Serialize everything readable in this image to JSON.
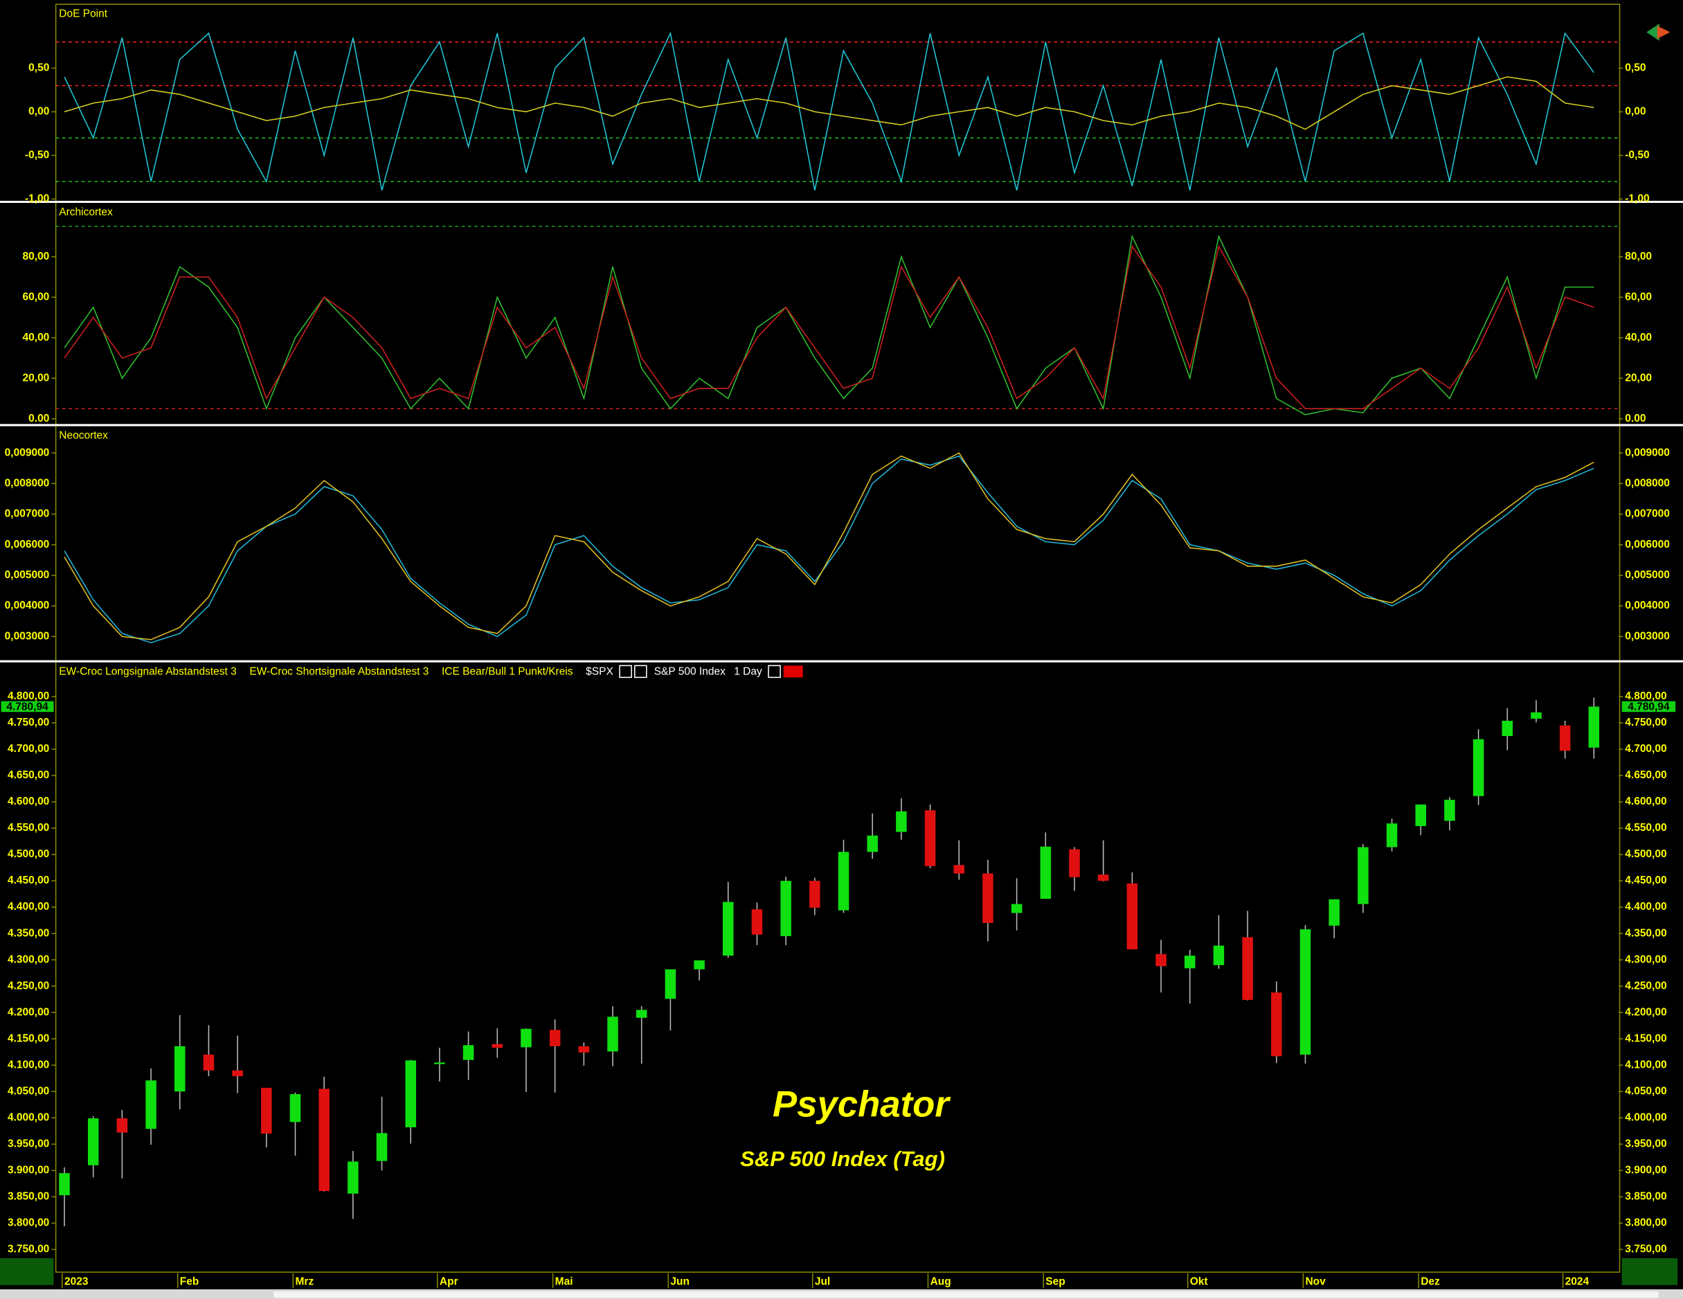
{
  "chart_data": [
    {
      "type": "line",
      "title": "DoE Point",
      "ylim": [
        -1.02,
        1.22
      ],
      "yticks": [
        {
          "value": 0.5,
          "label": "0,50"
        },
        {
          "value": 0,
          "label": "0,00"
        },
        {
          "value": -0.5,
          "label": "-0,50"
        },
        {
          "value": -1,
          "label": "-1,00"
        }
      ],
      "hlines": [
        {
          "value": 0.8,
          "color": "#ff2020"
        },
        {
          "value": 0.3,
          "color": "#ff2020"
        },
        {
          "value": -0.3,
          "color": "#20c020"
        },
        {
          "value": -0.8,
          "color": "#20c020"
        }
      ],
      "series": [
        {
          "color": "#20c8d8",
          "values": [
            0.4,
            -0.3,
            0.85,
            -0.8,
            0.6,
            0.9,
            -0.2,
            -0.8,
            0.7,
            -0.5,
            0.85,
            -0.9,
            0.3,
            0.8,
            -0.4,
            0.9,
            -0.7,
            0.5,
            0.85,
            -0.6,
            0.2,
            0.9,
            -0.8,
            0.6,
            -0.3,
            0.85,
            -0.9,
            0.7,
            0.1,
            -0.8,
            0.9,
            -0.5,
            0.4,
            -0.9,
            0.8,
            -0.7,
            0.3,
            -0.85,
            0.6,
            -0.9,
            0.85,
            -0.4,
            0.5,
            -0.8,
            0.7,
            0.9,
            -0.3,
            0.6,
            -0.8,
            0.85,
            0.2,
            -0.6,
            0.9,
            0.45
          ]
        },
        {
          "color": "#d8d020",
          "values": [
            0.0,
            0.1,
            0.15,
            0.25,
            0.2,
            0.1,
            0.0,
            -0.1,
            -0.05,
            0.05,
            0.1,
            0.15,
            0.25,
            0.2,
            0.15,
            0.05,
            0.0,
            0.1,
            0.05,
            -0.05,
            0.1,
            0.15,
            0.05,
            0.1,
            0.15,
            0.1,
            0.0,
            -0.05,
            -0.1,
            -0.15,
            -0.05,
            0.0,
            0.05,
            -0.05,
            0.05,
            0.0,
            -0.1,
            -0.15,
            -0.05,
            0.0,
            0.1,
            0.05,
            -0.05,
            -0.2,
            0.0,
            0.2,
            0.3,
            0.25,
            0.2,
            0.3,
            0.4,
            0.35,
            0.1,
            0.05
          ]
        }
      ]
    },
    {
      "type": "line",
      "title": "Archicortex",
      "ylim": [
        -2.6,
        106
      ],
      "yticks": [
        {
          "value": 80,
          "label": "80,00"
        },
        {
          "value": 60,
          "label": "60,00"
        },
        {
          "value": 40,
          "label": "40,00"
        },
        {
          "value": 20,
          "label": "20,00"
        },
        {
          "value": 0,
          "label": "0.00"
        }
      ],
      "hlines": [
        {
          "value": 95,
          "color": "#20a020"
        },
        {
          "value": 5,
          "color": "#c02020"
        }
      ],
      "series": [
        {
          "color": "#30c030",
          "values": [
            35,
            55,
            20,
            40,
            75,
            65,
            45,
            5,
            40,
            60,
            45,
            30,
            5,
            20,
            5,
            60,
            30,
            50,
            10,
            75,
            25,
            5,
            20,
            10,
            45,
            55,
            30,
            10,
            25,
            80,
            45,
            70,
            40,
            5,
            25,
            35,
            5,
            90,
            60,
            20,
            90,
            60,
            10,
            2,
            5,
            3,
            20,
            25,
            10,
            40,
            70,
            20,
            65,
            65
          ]
        },
        {
          "color": "#d02020",
          "values": [
            30,
            50,
            30,
            35,
            70,
            70,
            50,
            10,
            35,
            60,
            50,
            35,
            10,
            15,
            10,
            55,
            35,
            45,
            15,
            70,
            30,
            10,
            15,
            15,
            40,
            55,
            35,
            15,
            20,
            75,
            50,
            70,
            45,
            10,
            20,
            35,
            10,
            85,
            65,
            25,
            85,
            60,
            20,
            5,
            5,
            5,
            15,
            25,
            15,
            35,
            65,
            25,
            60,
            55
          ]
        }
      ]
    },
    {
      "type": "line",
      "title": "Neocortex",
      "ylim": [
        0.00226,
        0.00984
      ],
      "yticks": [
        {
          "value": 0.009,
          "label": "0,009000"
        },
        {
          "value": 0.008,
          "label": "0,008000"
        },
        {
          "value": 0.007,
          "label": "0,007000"
        },
        {
          "value": 0.006,
          "label": "0,006000"
        },
        {
          "value": 0.005,
          "label": "0,005000"
        },
        {
          "value": 0.004,
          "label": "0,004000"
        },
        {
          "value": 0.003,
          "label": "0,003000"
        }
      ],
      "hlines": [],
      "series": [
        {
          "color": "#20b8d8",
          "values": [
            0.0058,
            0.0042,
            0.0031,
            0.0028,
            0.0031,
            0.004,
            0.0058,
            0.0066,
            0.007,
            0.0079,
            0.0076,
            0.0065,
            0.0049,
            0.0041,
            0.0034,
            0.003,
            0.0037,
            0.006,
            0.0063,
            0.0053,
            0.0046,
            0.0041,
            0.0042,
            0.0046,
            0.006,
            0.0058,
            0.0048,
            0.0061,
            0.008,
            0.0088,
            0.0086,
            0.0089,
            0.0077,
            0.0066,
            0.0061,
            0.006,
            0.0068,
            0.0081,
            0.0075,
            0.006,
            0.0058,
            0.0054,
            0.0052,
            0.0054,
            0.005,
            0.0044,
            0.004,
            0.0045,
            0.0055,
            0.0063,
            0.007,
            0.0078,
            0.0081,
            0.0085
          ]
        },
        {
          "color": "#e0c020",
          "values": [
            0.0056,
            0.004,
            0.003,
            0.0029,
            0.0033,
            0.0043,
            0.0061,
            0.0066,
            0.0072,
            0.0081,
            0.0074,
            0.0062,
            0.0048,
            0.004,
            0.0033,
            0.0031,
            0.004,
            0.0063,
            0.0061,
            0.0051,
            0.0045,
            0.004,
            0.0043,
            0.0048,
            0.0062,
            0.0057,
            0.0047,
            0.0064,
            0.0083,
            0.0089,
            0.0085,
            0.009,
            0.0075,
            0.0065,
            0.0062,
            0.0061,
            0.007,
            0.0083,
            0.0073,
            0.0059,
            0.0058,
            0.0053,
            0.0053,
            0.0055,
            0.0049,
            0.0043,
            0.0041,
            0.0047,
            0.0057,
            0.0065,
            0.0072,
            0.0079,
            0.0082,
            0.0087
          ]
        }
      ]
    },
    {
      "type": "candlestick",
      "title": "S&P 500 Index",
      "symbol": "$SPX",
      "interval": "1 Day",
      "indicator_labels": [
        "EW-Croc Longsignale Abstandstest 3",
        "EW-Croc Shortsignale Abstandstest 3",
        "ICE Bear/Bull 1 Punkt/Kreis"
      ],
      "annotations": [
        "Psychator",
        "S&P 500 Index (Tag)"
      ],
      "last_price": {
        "value": 4780.94,
        "label": "4.780,94"
      },
      "up_color": "#10e010",
      "down_color": "#e01010",
      "ylim": [
        3711,
        4818
      ],
      "yticks": [
        {
          "value": 4800,
          "label": "4.800,00"
        },
        {
          "value": 4750,
          "label": "4.750,00"
        },
        {
          "value": 4700,
          "label": "4.700,00"
        },
        {
          "value": 4650,
          "label": "4.650,00"
        },
        {
          "value": 4600,
          "label": "4.600,00"
        },
        {
          "value": 4550,
          "label": "4.550,00"
        },
        {
          "value": 4500,
          "label": "4.500,00"
        },
        {
          "value": 4450,
          "label": "4.450,00"
        },
        {
          "value": 4400,
          "label": "4.400,00"
        },
        {
          "value": 4350,
          "label": "4.350,00"
        },
        {
          "value": 4300,
          "label": "4.300,00"
        },
        {
          "value": 4250,
          "label": "4.250,00"
        },
        {
          "value": 4200,
          "label": "4.200,00"
        },
        {
          "value": 4150,
          "label": "4.150,00"
        },
        {
          "value": 4100,
          "label": "4.100,00"
        },
        {
          "value": 4050,
          "label": "4.050,00"
        },
        {
          "value": 4000,
          "label": "4.000,00"
        },
        {
          "value": 3950,
          "label": "3.950,00"
        },
        {
          "value": 3900,
          "label": "3.900,00"
        },
        {
          "value": 3850,
          "label": "3.850,00"
        },
        {
          "value": 3800,
          "label": "3.800,00"
        },
        {
          "value": 3750,
          "label": "3.750,00"
        }
      ],
      "categories": [
        "2023",
        null,
        null,
        null,
        "Feb",
        null,
        null,
        null,
        "Mrz",
        null,
        null,
        null,
        null,
        "Apr",
        null,
        null,
        null,
        "Mai",
        null,
        null,
        null,
        "Jun",
        null,
        null,
        null,
        null,
        "Jul",
        null,
        null,
        null,
        "Aug",
        null,
        null,
        null,
        "Sep",
        null,
        null,
        null,
        null,
        "Okt",
        null,
        null,
        null,
        "Nov",
        null,
        null,
        null,
        "Dez",
        null,
        null,
        null,
        null,
        "2024",
        null
      ],
      "open": [
        3853,
        3910,
        3999,
        3979,
        4050,
        4120,
        4090,
        4057,
        3992,
        4055,
        3856,
        3918,
        3982,
        4102,
        4110,
        4140,
        4134,
        4167,
        4136,
        4126,
        4190,
        4226,
        4282,
        4308,
        4396,
        4345,
        4450,
        4394,
        4505,
        4543,
        4584,
        4480,
        4464,
        4389,
        4416,
        4510,
        4462,
        4445,
        4311,
        4284,
        4290,
        4343,
        4238,
        4120,
        4365,
        4406,
        4514,
        4554,
        4564,
        4611,
        4725,
        4758,
        4745,
        4703
      ],
      "high": [
        3906,
        4003,
        4015,
        4094,
        4195,
        4176,
        4156,
        4057,
        4048,
        4078,
        3937,
        4040,
        4110,
        4133,
        4164,
        4170,
        4170,
        4187,
        4143,
        4212,
        4212,
        4281,
        4299,
        4448,
        4409,
        4458,
        4456,
        4528,
        4578,
        4607,
        4595,
        4527,
        4490,
        4455,
        4542,
        4514,
        4527,
        4466,
        4338,
        4319,
        4385,
        4393,
        4259,
        4366,
        4415,
        4520,
        4568,
        4595,
        4609,
        4738,
        4778,
        4793,
        4754,
        4798
      ],
      "low": [
        3794,
        3887,
        3885,
        3949,
        4016,
        4079,
        4047,
        3944,
        3928,
        3860,
        3808,
        3900,
        3951,
        4069,
        4072,
        4114,
        4049,
        4048,
        4099,
        4098,
        4103,
        4166,
        4261,
        4304,
        4328,
        4328,
        4385,
        4389,
        4492,
        4528,
        4474,
        4452,
        4335,
        4356,
        4416,
        4431,
        4449,
        4320,
        4238,
        4217,
        4283,
        4223,
        4104,
        4103,
        4341,
        4389,
        4506,
        4537,
        4546,
        4594,
        4698,
        4751,
        4682,
        4682
      ],
      "close": [
        3895,
        3999,
        3972,
        4071,
        4136,
        4090,
        4079,
        3970,
        4045,
        3861,
        3917,
        3971,
        4109,
        4105,
        4138,
        4133,
        4169,
        4136,
        4124,
        4192,
        4205,
        4282,
        4299,
        4410,
        4348,
        4450,
        4399,
        4505,
        4536,
        4582,
        4478,
        4464,
        4370,
        4406,
        4515,
        4457,
        4450,
        4320,
        4288,
        4308,
        4327,
        4224,
        4117,
        4358,
        4415,
        4514,
        4559,
        4595,
        4604,
        4719,
        4754,
        4770,
        4697,
        4780.94
      ]
    }
  ]
}
